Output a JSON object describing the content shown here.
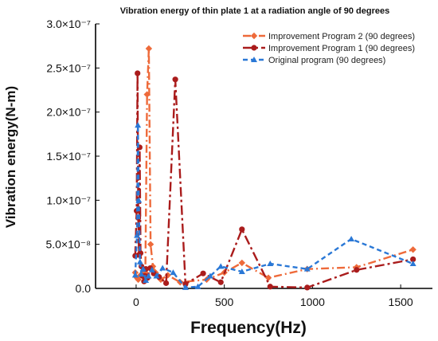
{
  "chart_data": {
    "type": "line",
    "title": "Vibration energy of thin plate 1 at a radiation angle of 90 degrees",
    "xlabel": "Frequency(Hz)",
    "ylabel": "Vibration energy(N-m)",
    "xlim": [
      -230,
      1680
    ],
    "ylim": [
      0,
      3e-07
    ],
    "xticks": [
      0,
      500,
      1000,
      1500
    ],
    "xtick_labels": [
      "0",
      "500",
      "1000",
      "1500"
    ],
    "yticks": [
      0,
      5e-08,
      1e-07,
      1.5e-07,
      2e-07,
      2.5e-07,
      3e-07
    ],
    "ytick_labels": [
      "0.0",
      "5.0×10⁻⁸",
      "1.0×10⁻⁷",
      "1.5×10⁻⁷",
      "2.0×10⁻⁷",
      "2.5×10⁻⁷",
      "3.0×10⁻⁷"
    ],
    "grid": false,
    "legend_position": "top-right",
    "series": [
      {
        "name": "Improvement Program 2 (90 degrees)",
        "color": "#ee6a3a",
        "marker": "diamond",
        "dash": "10,4,2,4",
        "x": [
          -5,
          5,
          12,
          20,
          30,
          42,
          52,
          62,
          72,
          82,
          95,
          110,
          140,
          180,
          250,
          400,
          500,
          600,
          750,
          970,
          1250,
          1570
        ],
        "y": [
          1.8e-08,
          1.2e-08,
          1e-08,
          1.4e-08,
          1.6e-08,
          2.2e-08,
          1.8e-08,
          2.2e-07,
          2.72e-07,
          5e-08,
          2.5e-08,
          1.8e-08,
          1e-08,
          1.5e-08,
          7e-09,
          1e-08,
          1.8e-08,
          2.9e-08,
          1.2e-08,
          2.2e-08,
          2.4e-08,
          4.4e-08
        ]
      },
      {
        "name": "Improvement Program 1 (90 degrees)",
        "color": "#aa1c1c",
        "marker": "circle",
        "dash": "12,4,3,4",
        "x": [
          -5,
          3,
          8,
          12,
          16,
          20,
          25,
          30,
          38,
          45,
          55,
          65,
          80,
          100,
          130,
          170,
          222,
          280,
          380,
          480,
          600,
          760,
          970,
          1250,
          1570
        ],
        "y": [
          3.7e-08,
          8.8e-08,
          2.44e-07,
          8e-08,
          3.8e-08,
          1.6e-07,
          4e-08,
          2.5e-08,
          1.4e-08,
          8e-09,
          2.2e-08,
          1.2e-08,
          2.3e-08,
          1.7e-08,
          1.3e-08,
          6e-09,
          2.37e-07,
          5e-09,
          1.7e-08,
          7e-09,
          6.7e-08,
          2e-09,
          1e-09,
          2.1e-08,
          3.3e-08
        ]
      },
      {
        "name": "Original program (90 degrees)",
        "color": "#2a78d6",
        "marker": "triangle",
        "dash": "6,4",
        "x": [
          -5,
          5,
          10,
          15,
          22,
          30,
          40,
          55,
          70,
          90,
          115,
          150,
          210,
          280,
          350,
          420,
          480,
          600,
          760,
          970,
          1220,
          1570
        ],
        "y": [
          1.5e-08,
          6e-08,
          1.85e-07,
          1e-07,
          3e-08,
          1.6e-08,
          2.2e-08,
          9e-09,
          1.4e-08,
          2.1e-08,
          1.4e-08,
          2.3e-08,
          1.8e-08,
          1e-09,
          2e-09,
          1.4e-08,
          2.5e-08,
          1.9e-08,
          2.8e-08,
          2.2e-08,
          5.6e-08,
          2.8e-08
        ]
      }
    ]
  }
}
